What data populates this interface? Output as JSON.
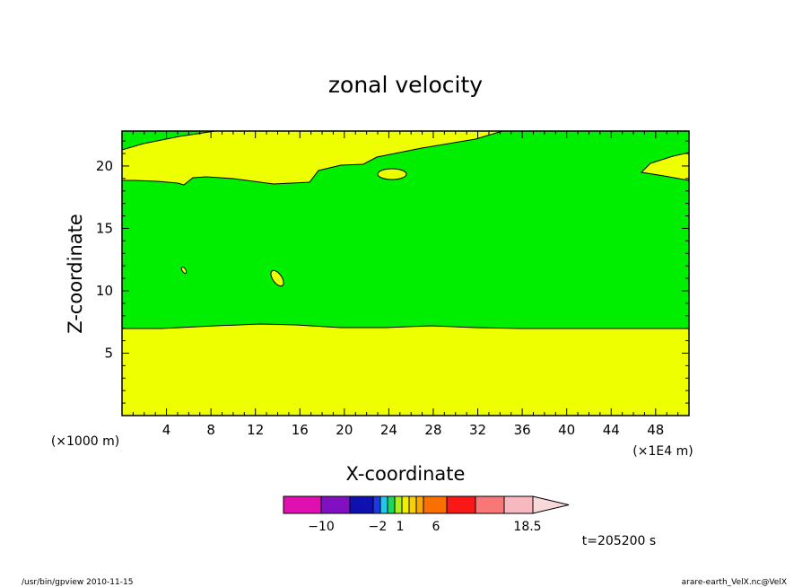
{
  "chart_data": {
    "type": "contour",
    "title": "zonal velocity",
    "xlabel": "X-coordinate",
    "ylabel": "Z-coordinate",
    "x_unit": "(×1E4 m)",
    "y_unit": "(×1000 m)",
    "x_ticks": [
      4,
      8,
      12,
      16,
      20,
      24,
      28,
      32,
      36,
      40,
      44,
      48
    ],
    "y_ticks": [
      5,
      10,
      15,
      20
    ],
    "xlim": [
      0,
      51
    ],
    "ylim": [
      0,
      22.8
    ],
    "time_label": "t=205200 s",
    "colorbar": {
      "colors": [
        "#e010b0",
        "#8010c0",
        "#1010b0",
        "#1a3ae0",
        "#20c8f0",
        "#18d860",
        "#a8f018",
        "#f0f000",
        "#f8d000",
        "#f8a800",
        "#f87000",
        "#f81818",
        "#f87878",
        "#f8b8c0",
        "#f8d8d8"
      ],
      "labels": [
        "−10",
        "−2",
        "1",
        "6",
        "18.5"
      ]
    },
    "regions": [
      {
        "color": "#00ee00",
        "name": "green band (~1 to 2 level)"
      },
      {
        "color": "#eeff00",
        "name": "yellow band"
      }
    ]
  },
  "footer": {
    "left": "/usr/bin/gpview   2010-11-15",
    "right": "arare-earth_VelX.nc@VelX"
  }
}
